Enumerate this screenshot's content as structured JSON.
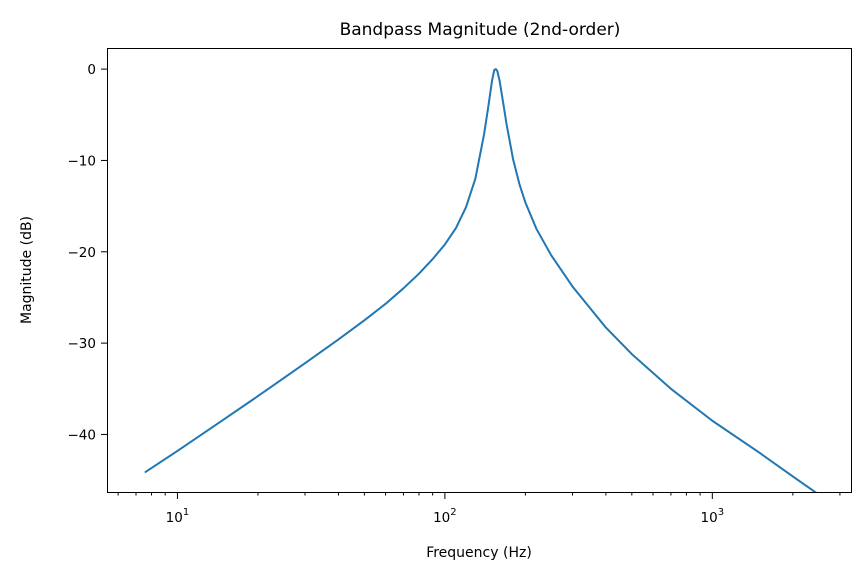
{
  "chart_data": {
    "type": "line",
    "title": "Bandpass Magnitude (2nd-order)",
    "xlabel": "Frequency (Hz)",
    "ylabel": "Magnitude (dB)",
    "xscale": "log",
    "xlim": [
      5.5,
      3300
    ],
    "ylim": [
      -46.3,
      2.2
    ],
    "grid": false,
    "legend": null,
    "colors": {
      "series": "#1f77b4"
    },
    "x_ticks": [
      {
        "value": 10,
        "base": "10",
        "exp": "1"
      },
      {
        "value": 100,
        "base": "10",
        "exp": "2"
      },
      {
        "value": 1000,
        "base": "10",
        "exp": "3"
      }
    ],
    "y_ticks": [
      {
        "value": 0,
        "label": "0"
      },
      {
        "value": -10,
        "label": "−10"
      },
      {
        "value": -20,
        "label": "−20"
      },
      {
        "value": -30,
        "label": "−30"
      },
      {
        "value": -40,
        "label": "−40"
      }
    ],
    "series": [
      {
        "x": [
          7.6,
          10,
          15,
          20,
          30,
          40,
          50,
          60,
          70,
          80,
          90,
          100,
          110,
          120,
          130,
          140,
          145,
          150,
          153,
          155,
          157,
          160,
          165,
          170,
          180,
          190,
          200,
          220,
          250,
          300,
          400,
          500,
          700,
          1000,
          1500,
          2000,
          3000
        ],
        "y": [
          -44.1,
          -41.8,
          -38.3,
          -35.8,
          -32.2,
          -29.6,
          -27.5,
          -25.7,
          -24.0,
          -22.4,
          -20.8,
          -19.2,
          -17.4,
          -15.1,
          -12.0,
          -7.2,
          -4.3,
          -1.3,
          -0.1,
          0.0,
          -0.2,
          -1.2,
          -3.6,
          -6.0,
          -9.9,
          -12.6,
          -14.6,
          -17.5,
          -20.4,
          -23.8,
          -28.3,
          -31.2,
          -35.0,
          -38.5,
          -42.0,
          -44.6,
          -48.2
        ]
      }
    ]
  }
}
